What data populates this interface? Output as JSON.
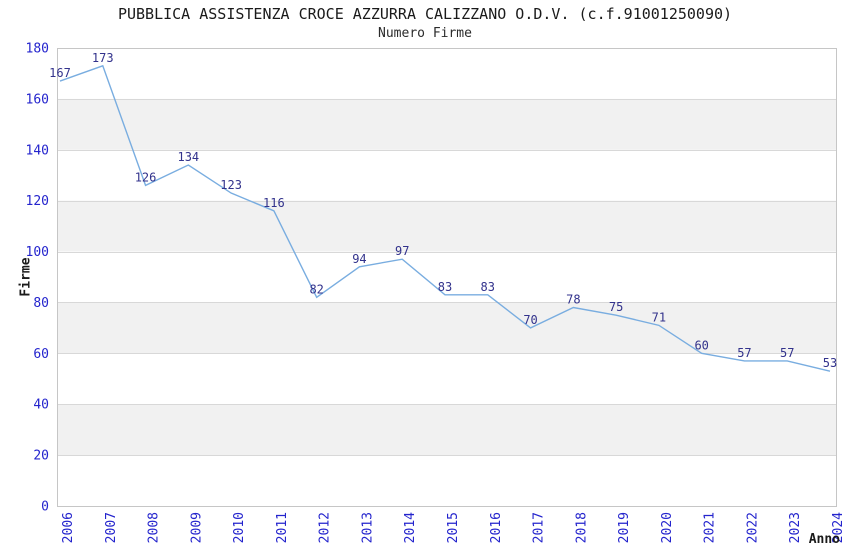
{
  "chart_data": {
    "type": "line",
    "title": "PUBBLICA ASSISTENZA CROCE AZZURRA CALIZZANO O.D.V. (c.f.91001250090)",
    "subtitle": "Numero Firme",
    "xlabel": "Anno",
    "ylabel": "Firme",
    "categories": [
      "2006",
      "2007",
      "2008",
      "2009",
      "2010",
      "2011",
      "2012",
      "2013",
      "2014",
      "2015",
      "2016",
      "2017",
      "2018",
      "2019",
      "2020",
      "2021",
      "2022",
      "2023",
      "2024"
    ],
    "values": [
      167,
      173,
      126,
      134,
      123,
      116,
      82,
      94,
      97,
      83,
      83,
      70,
      78,
      75,
      71,
      60,
      57,
      57,
      53
    ],
    "ylim": [
      0,
      180
    ],
    "y_ticks": [
      0,
      20,
      40,
      60,
      80,
      100,
      120,
      140,
      160,
      180
    ],
    "grid": "horizontal-bands",
    "legend": "none",
    "data_labels_shown": true,
    "markers": "none",
    "colors": {
      "line": "#79ade0",
      "data_label": "#32328c",
      "tick_label": "#2424cd",
      "band_fill": "#f1f1f1",
      "gridline": "#d8d8d8",
      "plot_border": "#c6c6c6",
      "title_text": "#1a1a1a",
      "background": "#ffffff"
    }
  }
}
